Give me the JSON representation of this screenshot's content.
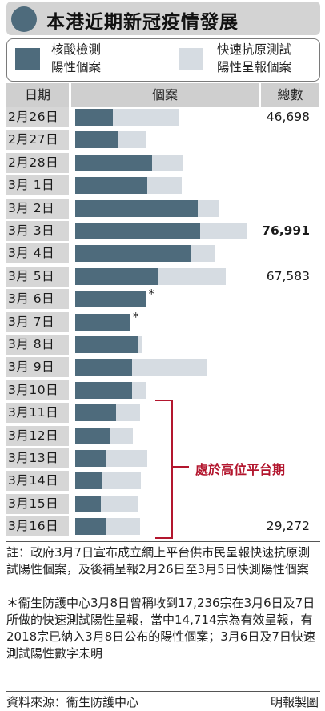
{
  "title": "本港近期新冠疫情發展",
  "legend": {
    "dark": [
      "核酸檢測",
      "陽性個案"
    ],
    "light": [
      "快速抗原測試",
      "陽性呈報個案"
    ]
  },
  "headers": {
    "date": "日期",
    "cases": "個案",
    "total": "總數"
  },
  "colors": {
    "pcr": "#4e6b7c",
    "rat": "#d6dce2",
    "bracket": "#b3162e"
  },
  "chart_data": {
    "type": "bar",
    "stacked": true,
    "orientation": "horizontal",
    "categories": [
      "2月26日",
      "2月27日",
      "2月28日",
      "3月1日",
      "3月2日",
      "3月3日",
      "3月4日",
      "3月5日",
      "3月6日",
      "3月7日",
      "3月8日",
      "3月9日",
      "3月10日",
      "3月11日",
      "3月12日",
      "3月13日",
      "3月14日",
      "3月15日",
      "3月16日"
    ],
    "date_labels": [
      "2月26日",
      "2月27日",
      "2月28日",
      "3月 1日",
      "3月 2日",
      "3月 3日",
      "3月 4日",
      "3月 5日",
      "3月 6日",
      "3月 7日",
      "3月 8日",
      "3月 9日",
      "3月10日",
      "3月11日",
      "3月12日",
      "3月13日",
      "3月14日",
      "3月15日",
      "3月16日"
    ],
    "series": [
      {
        "name": "核酸檢測陽性個案",
        "values": [
          17000,
          19500,
          34500,
          32500,
          55000,
          56000,
          52000,
          37500,
          31500,
          24500,
          28500,
          25500,
          25500,
          18500,
          16000,
          13500,
          12000,
          11500,
          14000
        ]
      },
      {
        "name": "快速抗原測試陽性呈報個案",
        "values": [
          29698,
          12000,
          14000,
          15500,
          9500,
          20991,
          10500,
          30083,
          0,
          0,
          1500,
          34000,
          6500,
          10500,
          10000,
          19000,
          17500,
          16500,
          15272
        ]
      }
    ],
    "totals": [
      "46,698",
      "",
      "",
      "",
      "",
      "76,991",
      "",
      "67,583",
      "",
      "",
      "",
      "",
      "",
      "",
      "",
      "",
      "",
      "",
      "29,272"
    ],
    "total_bold_index": 5,
    "stars": [
      8,
      9
    ],
    "star_text": "*",
    "bracket_label": "處於高位平台期",
    "bracket_range": [
      13,
      18
    ],
    "xlim": [
      0,
      81000
    ]
  },
  "notes": {
    "note1": "註：政府3月7日宣布成立網上平台供市民呈報快速抗原測試陽性個案，及後補呈報2月26日至3月5日快測陽性個案",
    "note2": "＊衞生防護中心3月8日曾稱收到17,236宗在3月6日及7日所做的快速測試陽性呈報，當中14,714宗為有效呈報，有2018宗已納入3月8日公布的陽性個案；3月6日及7日快速測試陽性數字未明"
  },
  "footer": {
    "source": "資料來源：衞生防護中心",
    "maker": "明報製圖"
  }
}
